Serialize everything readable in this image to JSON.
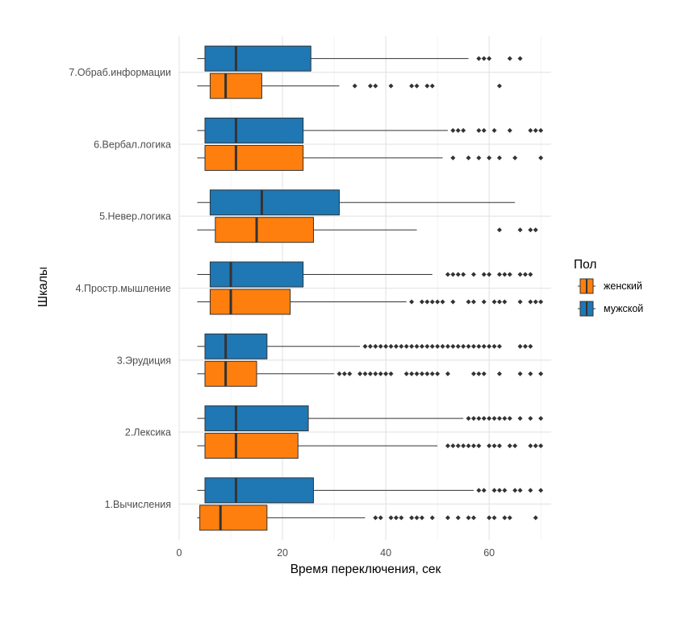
{
  "chart_data": {
    "type": "boxplot",
    "orientation": "horizontal",
    "xlabel": "Время переключения, сек",
    "ylabel": "Шкалы",
    "xlim": [
      0,
      72
    ],
    "xticks": [
      0,
      20,
      40,
      60
    ],
    "grid": true,
    "legend": {
      "title": "Пол",
      "position": "right",
      "entries": [
        {
          "name": "женский",
          "color": "#FF7F0E"
        },
        {
          "name": "мужской",
          "color": "#1F77B4"
        }
      ]
    },
    "categories": [
      "7.Обраб.информации",
      "6.Вербал.логика",
      "5.Невер.логика",
      "4.Простр.мышление",
      "3.Эрудиция",
      "2.Лексика",
      "1.Вычисления"
    ],
    "series": [
      {
        "name": "мужской",
        "color": "#1F77B4",
        "boxes": [
          {
            "whisker_low": 3.5,
            "q1": 5,
            "median": 11,
            "q3": 25.5,
            "whisker_high": 56,
            "outliers": [
              58,
              59,
              60,
              64,
              66
            ]
          },
          {
            "whisker_low": 3.5,
            "q1": 5,
            "median": 11,
            "q3": 24,
            "whisker_high": 52,
            "outliers": [
              53,
              54,
              55,
              58,
              59,
              61,
              64,
              68,
              69,
              70
            ]
          },
          {
            "whisker_low": 3.5,
            "q1": 6,
            "median": 16,
            "q3": 31,
            "whisker_high": 65,
            "outliers": []
          },
          {
            "whisker_low": 3.5,
            "q1": 6,
            "median": 10,
            "q3": 24,
            "whisker_high": 49,
            "outliers": [
              52,
              53,
              54,
              55,
              57,
              59,
              60,
              62,
              63,
              64,
              66,
              67,
              68
            ]
          },
          {
            "whisker_low": 3.5,
            "q1": 5,
            "median": 9,
            "q3": 17,
            "whisker_high": 35,
            "outliers": [
              36,
              37,
              38,
              39,
              40,
              41,
              42,
              43,
              44,
              45,
              46,
              47,
              48,
              49,
              50,
              51,
              52,
              53,
              54,
              55,
              56,
              57,
              58,
              59,
              60,
              61,
              62,
              66,
              67,
              68
            ]
          },
          {
            "whisker_low": 3.5,
            "q1": 5,
            "median": 11,
            "q3": 25,
            "whisker_high": 55,
            "outliers": [
              56,
              57,
              58,
              59,
              60,
              61,
              62,
              63,
              64,
              66,
              68,
              70
            ]
          },
          {
            "whisker_low": 3.5,
            "q1": 5,
            "median": 11,
            "q3": 26,
            "whisker_high": 57,
            "outliers": [
              58,
              59,
              61,
              62,
              63,
              65,
              66,
              68,
              70
            ]
          }
        ]
      },
      {
        "name": "женский",
        "color": "#FF7F0E",
        "boxes": [
          {
            "whisker_low": 3.5,
            "q1": 6,
            "median": 9,
            "q3": 16,
            "whisker_high": 31,
            "outliers": [
              34,
              37,
              38,
              41,
              45,
              46,
              48,
              49,
              62
            ]
          },
          {
            "whisker_low": 3.5,
            "q1": 5,
            "median": 11,
            "q3": 24,
            "whisker_high": 51,
            "outliers": [
              53,
              56,
              58,
              60,
              62,
              65,
              70
            ]
          },
          {
            "whisker_low": 3.5,
            "q1": 7,
            "median": 15,
            "q3": 26,
            "whisker_high": 46,
            "outliers": [
              62,
              66,
              68,
              69
            ]
          },
          {
            "whisker_low": 3.5,
            "q1": 6,
            "median": 10,
            "q3": 21.5,
            "whisker_high": 44,
            "outliers": [
              45,
              47,
              48,
              49,
              50,
              51,
              53,
              56,
              57,
              59,
              61,
              62,
              63,
              66,
              68,
              69,
              70
            ]
          },
          {
            "whisker_low": 3.5,
            "q1": 5,
            "median": 9,
            "q3": 15,
            "whisker_high": 30,
            "outliers": [
              31,
              32,
              33,
              35,
              36,
              37,
              38,
              39,
              40,
              41,
              44,
              45,
              46,
              47,
              48,
              49,
              50,
              52,
              57,
              58,
              59,
              62,
              66,
              68,
              70
            ]
          },
          {
            "whisker_low": 3.5,
            "q1": 5,
            "median": 11,
            "q3": 23,
            "whisker_high": 50,
            "outliers": [
              52,
              53,
              54,
              55,
              56,
              57,
              58,
              60,
              61,
              62,
              64,
              65,
              68,
              69,
              70
            ]
          },
          {
            "whisker_low": 3.5,
            "q1": 4,
            "median": 8,
            "q3": 17,
            "whisker_high": 36,
            "outliers": [
              38,
              39,
              41,
              42,
              43,
              45,
              46,
              47,
              49,
              52,
              54,
              56,
              57,
              60,
              61,
              63,
              64,
              69
            ]
          }
        ]
      }
    ]
  }
}
